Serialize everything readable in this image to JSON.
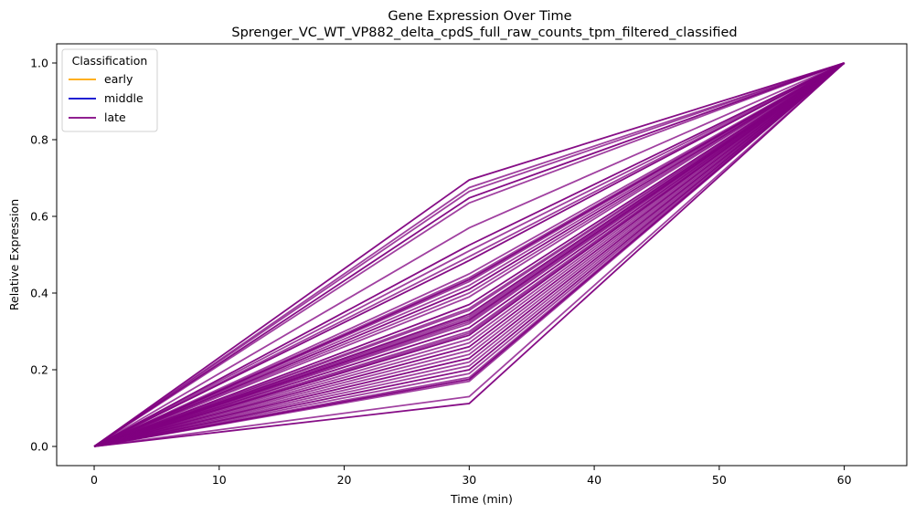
{
  "chart_data": {
    "type": "line",
    "title": "Gene Expression Over Time",
    "subtitle": "Sprenger_VC_WT_VP882_delta_cpdS_full_raw_counts_tpm_filtered_classified",
    "xlabel": "Time (min)",
    "ylabel": "Relative Expression",
    "x": [
      0,
      30,
      60
    ],
    "xlim": [
      -3,
      65
    ],
    "ylim": [
      -0.05,
      1.05
    ],
    "xticks": [
      0,
      10,
      20,
      30,
      40,
      50,
      60
    ],
    "yticks": [
      0.0,
      0.2,
      0.4,
      0.6,
      0.8,
      1.0
    ],
    "xtick_labels": [
      "0",
      "10",
      "20",
      "30",
      "40",
      "50",
      "60"
    ],
    "ytick_labels": [
      "0.0",
      "0.2",
      "0.4",
      "0.6",
      "0.8",
      "1.0"
    ],
    "grid": false,
    "legend": {
      "title": "Classification",
      "placement": "top-left",
      "entries": [
        {
          "label": "early",
          "color": "#ffa500"
        },
        {
          "label": "middle",
          "color": "#0000cd"
        },
        {
          "label": "late",
          "color": "#800080"
        }
      ]
    },
    "series_color": "#800080",
    "series_values_at_30": [
      0.695,
      0.675,
      0.665,
      0.648,
      0.635,
      0.57,
      0.525,
      0.51,
      0.495,
      0.485,
      0.45,
      0.44,
      0.435,
      0.43,
      0.42,
      0.41,
      0.4,
      0.39,
      0.37,
      0.36,
      0.355,
      0.345,
      0.34,
      0.335,
      0.33,
      0.325,
      0.32,
      0.31,
      0.3,
      0.295,
      0.29,
      0.28,
      0.27,
      0.26,
      0.25,
      0.24,
      0.23,
      0.22,
      0.21,
      0.2,
      0.19,
      0.18,
      0.175,
      0.17,
      0.13,
      0.112
    ],
    "series_start": 0.0,
    "series_end": 1.0
  }
}
